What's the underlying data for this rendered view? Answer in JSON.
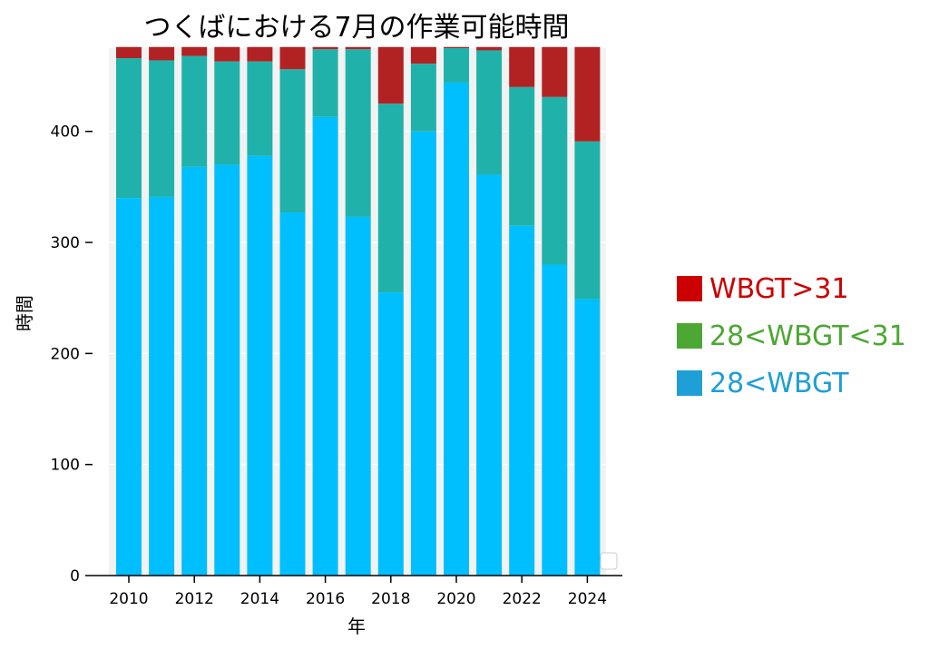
{
  "chart_data": {
    "type": "bar",
    "stacked": true,
    "title": "つくばにおける7月の作業可能時間",
    "xlabel": "年",
    "ylabel": "時間",
    "ylim": [
      0,
      475
    ],
    "yticks": [
      0,
      100,
      200,
      300,
      400
    ],
    "xticks": [
      "2010",
      "2012",
      "2014",
      "2016",
      "2018",
      "2020",
      "2022",
      "2024"
    ],
    "grid": true,
    "legend_position": "right",
    "categories": [
      "2010",
      "2011",
      "2012",
      "2013",
      "2014",
      "2015",
      "2016",
      "2017",
      "2018",
      "2019",
      "2020",
      "2021",
      "2022",
      "2023",
      "2024"
    ],
    "series": [
      {
        "name": "28<WBGT",
        "color": "#00BFFF",
        "values": [
          340,
          341,
          368,
          370,
          378,
          327,
          413,
          323,
          255,
          400,
          444,
          361,
          315,
          280,
          249
        ]
      },
      {
        "name": "28<WBGT<31",
        "color": "#20B2AA",
        "values": [
          126,
          123,
          100,
          93,
          85,
          129,
          61,
          151,
          170,
          61,
          31,
          112,
          125,
          151,
          142
        ]
      },
      {
        "name": "WBGT>31",
        "color": "#B22222",
        "values": [
          10,
          12,
          8,
          13,
          13,
          20,
          2,
          2,
          51,
          15,
          1,
          3,
          36,
          45,
          85
        ]
      }
    ]
  },
  "legend": {
    "items": [
      {
        "label": "WBGT>31",
        "swatch": "#CC0000",
        "text_color": "#CC0000"
      },
      {
        "label": "28<WBGT<31",
        "swatch": "#4CA832",
        "text_color": "#4CA832"
      },
      {
        "label": "28<WBGT",
        "swatch": "#1E9FD6",
        "text_color": "#1E9FD6"
      }
    ]
  }
}
